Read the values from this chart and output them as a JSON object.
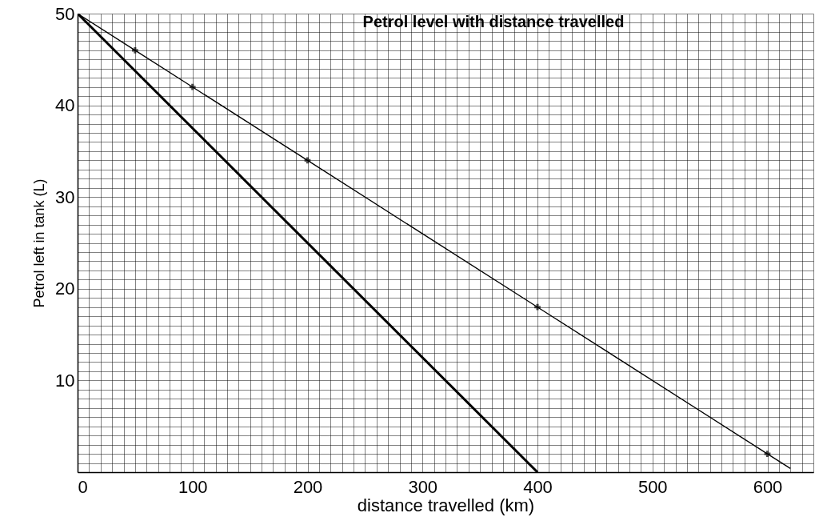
{
  "chart_data": {
    "type": "line",
    "title": "Petrol level with distance travelled",
    "xlabel": "distance travelled  (km)",
    "ylabel": "Petrol left in tank (L)",
    "series": [
      {
        "color": "#000000",
        "marker": "none",
        "x": [
          0,
          50,
          100,
          200,
          400,
          600,
          620
        ],
        "values": [
          50,
          46,
          42,
          34,
          18,
          2,
          0.4
        ]
      },
      {
        "type": "scatter",
        "color": "#000000",
        "marker": "cross",
        "x": [
          50,
          100,
          200,
          400,
          600
        ],
        "values": [
          46,
          42,
          34,
          18,
          2
        ]
      },
      {
        "color": "#000000",
        "marker": "none",
        "x": [
          0,
          400
        ],
        "values": [
          50,
          0
        ]
      }
    ],
    "xlim": [
      0,
      640
    ],
    "ylim": [
      0,
      50
    ],
    "xticks": [
      0,
      {
        "value": 10,
        "label": null
      },
      {
        "value": 20,
        "label": null
      },
      {
        "value": 30,
        "label": null
      },
      {
        "value": 40,
        "label": null
      },
      {
        "value": 50,
        "label": null
      },
      {
        "value": 60,
        "label": null
      },
      {
        "value": 70,
        "label": null
      },
      {
        "value": 80,
        "label": null
      },
      {
        "value": 90,
        "label": null
      },
      100,
      {
        "value": 110,
        "label": null
      },
      {
        "value": 120,
        "label": null
      },
      {
        "value": 130,
        "label": null
      },
      {
        "value": 140,
        "label": null
      },
      {
        "value": 150,
        "label": null
      },
      {
        "value": 160,
        "label": null
      },
      {
        "value": 170,
        "label": null
      },
      {
        "value": 180,
        "label": null
      },
      {
        "value": 190,
        "label": null
      },
      200,
      {
        "value": 210,
        "label": null
      },
      {
        "value": 220,
        "label": null
      },
      {
        "value": 230,
        "label": null
      },
      {
        "value": 240,
        "label": null
      },
      {
        "value": 250,
        "label": null
      },
      {
        "value": 260,
        "label": null
      },
      {
        "value": 270,
        "label": null
      },
      {
        "value": 280,
        "label": null
      },
      {
        "value": 290,
        "label": null
      },
      300,
      {
        "value": 310,
        "label": null
      },
      {
        "value": 320,
        "label": null
      },
      {
        "value": 330,
        "label": null
      },
      {
        "value": 340,
        "label": null
      },
      {
        "value": 350,
        "label": null
      },
      {
        "value": 360,
        "label": null
      },
      {
        "value": 370,
        "label": null
      },
      {
        "value": 380,
        "label": null
      },
      {
        "value": 390,
        "label": null
      },
      400,
      {
        "value": 410,
        "label": null
      },
      {
        "value": 420,
        "label": null
      },
      {
        "value": 430,
        "label": null
      },
      {
        "value": 440,
        "label": null
      },
      {
        "value": 450,
        "label": null
      },
      {
        "value": 460,
        "label": null
      },
      {
        "value": 470,
        "label": null
      },
      {
        "value": 480,
        "label": null
      },
      {
        "value": 490,
        "label": null
      },
      500,
      {
        "value": 510,
        "label": null
      },
      {
        "value": 520,
        "label": null
      },
      {
        "value": 530,
        "label": null
      },
      {
        "value": 540,
        "label": null
      },
      {
        "value": 550,
        "label": null
      },
      {
        "value": 560,
        "label": null
      },
      {
        "value": 570,
        "label": null
      },
      {
        "value": 580,
        "label": null
      },
      {
        "value": 590,
        "label": null
      },
      600,
      {
        "value": 610,
        "label": null
      },
      {
        "value": 620,
        "label": null
      },
      {
        "value": 630,
        "label": null
      },
      {
        "value": 640,
        "label": null
      }
    ],
    "yticks": [
      {
        "value": 0,
        "label": null
      },
      {
        "value": 1,
        "label": null
      },
      {
        "value": 2,
        "label": null
      },
      {
        "value": 3,
        "label": null
      },
      {
        "value": 4,
        "label": null
      },
      {
        "value": 5,
        "label": null
      },
      {
        "value": 6,
        "label": null
      },
      {
        "value": 7,
        "label": null
      },
      {
        "value": 8,
        "label": null
      },
      {
        "value": 9,
        "label": null
      },
      10,
      {
        "value": 11,
        "label": null
      },
      {
        "value": 12,
        "label": null
      },
      {
        "value": 13,
        "label": null
      },
      {
        "value": 14,
        "label": null
      },
      {
        "value": 15,
        "label": null
      },
      {
        "value": 16,
        "label": null
      },
      {
        "value": 17,
        "label": null
      },
      {
        "value": 18,
        "label": null
      },
      {
        "value": 19,
        "label": null
      },
      20,
      {
        "value": 21,
        "label": null
      },
      {
        "value": 22,
        "label": null
      },
      {
        "value": 23,
        "label": null
      },
      {
        "value": 24,
        "label": null
      },
      {
        "value": 25,
        "label": null
      },
      {
        "value": 26,
        "label": null
      },
      {
        "value": 27,
        "label": null
      },
      {
        "value": 28,
        "label": null
      },
      {
        "value": 29,
        "label": null
      },
      30,
      {
        "value": 31,
        "label": null
      },
      {
        "value": 32,
        "label": null
      },
      {
        "value": 33,
        "label": null
      },
      {
        "value": 34,
        "label": null
      },
      {
        "value": 35,
        "label": null
      },
      {
        "value": 36,
        "label": null
      },
      {
        "value": 37,
        "label": null
      },
      {
        "value": 38,
        "label": null
      },
      {
        "value": 39,
        "label": null
      },
      40,
      {
        "value": 41,
        "label": null
      },
      {
        "value": 42,
        "label": null
      },
      {
        "value": 43,
        "label": null
      },
      {
        "value": 44,
        "label": null
      },
      {
        "value": 45,
        "label": null
      },
      {
        "value": 46,
        "label": null
      },
      {
        "value": 47,
        "label": null
      },
      {
        "value": 48,
        "label": null
      },
      {
        "value": 49,
        "label": null
      },
      50
    ],
    "grid": true
  }
}
